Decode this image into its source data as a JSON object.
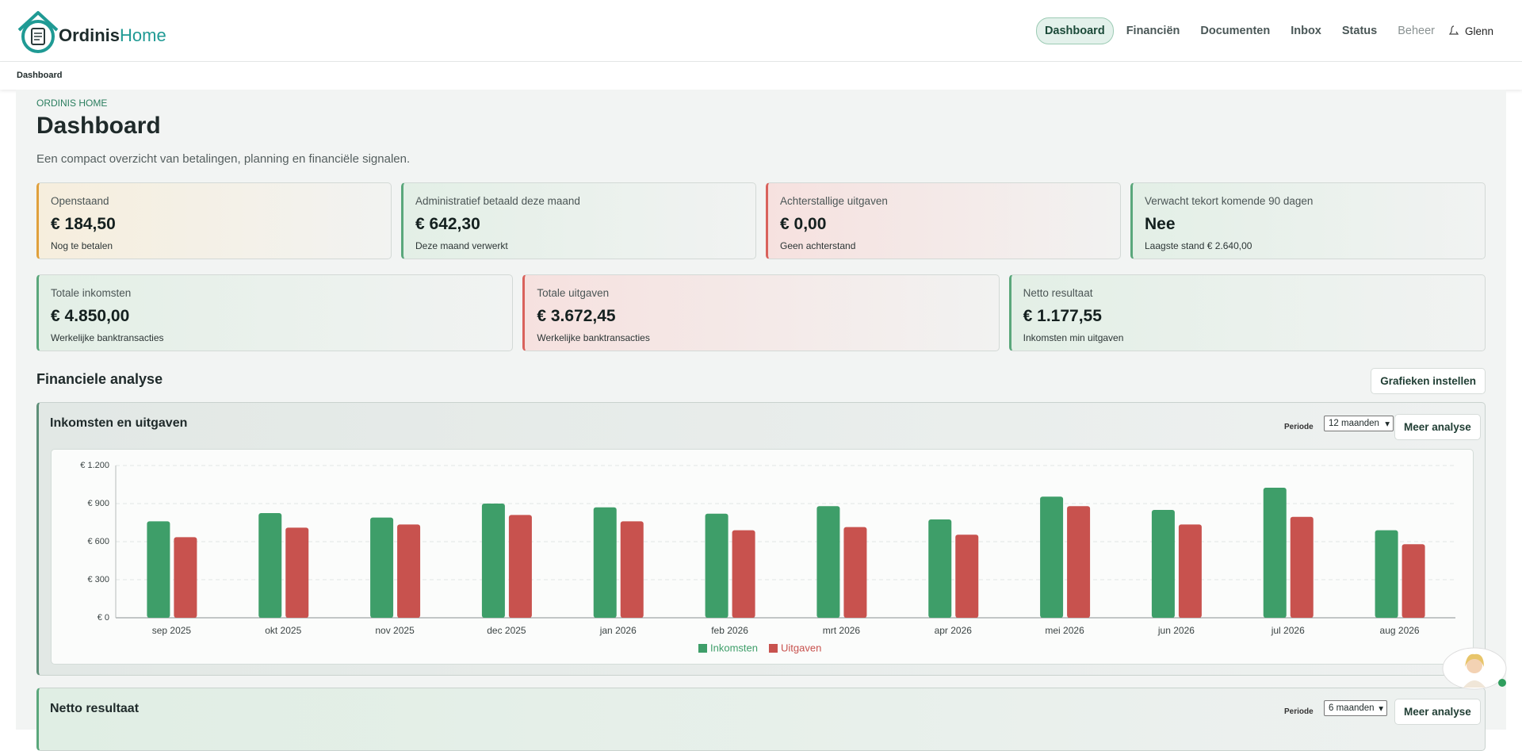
{
  "brand": {
    "name": "Ordinis",
    "accent": "Home"
  },
  "nav": [
    "Dashboard",
    "Financiën",
    "Documenten",
    "Inbox",
    "Status",
    "Beheer"
  ],
  "user": "Glenn",
  "breadcrumb": "Dashboard",
  "page": {
    "eyebrow": "ORDINIS HOME",
    "title": "Dashboard",
    "subtitle": "Een compact overzicht van betalingen, planning en financiële signalen."
  },
  "kpis": [
    {
      "label": "Openstaand",
      "value": "€ 184,50",
      "note": "Nog te betalen"
    },
    {
      "label": "Administratief betaald deze maand",
      "value": "€ 642,30",
      "note": "Deze maand verwerkt"
    },
    {
      "label": "Achterstallige uitgaven",
      "value": "€ 0,00",
      "note": "Geen achterstand"
    },
    {
      "label": "Verwacht tekort komende 90 dagen",
      "value": "Nee",
      "note": "Laagste stand € 2.640,00"
    }
  ],
  "totals": [
    {
      "label": "Totale inkomsten",
      "value": "€ 4.850,00",
      "note": "Werkelijke banktransacties"
    },
    {
      "label": "Totale uitgaven",
      "value": "€ 3.672,45",
      "note": "Werkelijke banktransacties"
    },
    {
      "label": "Netto resultaat",
      "value": "€ 1.177,55",
      "note": "Inkomsten min uitgaven"
    }
  ],
  "section": {
    "title": "Financiele analyse",
    "button": "Grafieken instellen"
  },
  "chart_card": {
    "title": "Inkomsten en uitgaven",
    "period_label": "Periode",
    "period": "12 maanden",
    "button": "Meer analyse"
  },
  "chart_data": {
    "type": "bar",
    "categories": [
      "sep 2025",
      "okt 2025",
      "nov 2025",
      "dec 2025",
      "jan 2026",
      "feb 2026",
      "mrt 2026",
      "apr 2026",
      "mei 2026",
      "jun 2026",
      "jul 2026",
      "aug 2026"
    ],
    "series": [
      {
        "name": "Inkomsten",
        "color": "#3e9e69",
        "values": [
          760,
          825,
          790,
          900,
          870,
          820,
          880,
          775,
          955,
          850,
          1025,
          690
        ]
      },
      {
        "name": "Uitgaven",
        "color": "#c8524e",
        "values": [
          635,
          710,
          735,
          810,
          760,
          690,
          715,
          655,
          880,
          735,
          795,
          580
        ]
      }
    ],
    "ylim": [
      0,
      1200
    ],
    "yticks": [
      {
        "value": 0,
        "label": "€ 0"
      },
      {
        "value": 300,
        "label": "€ 300"
      },
      {
        "value": 600,
        "label": "€ 600"
      },
      {
        "value": 900,
        "label": "€ 900"
      },
      {
        "value": 1200,
        "label": "€ 1.200"
      }
    ],
    "grid": true,
    "legend": "bottom"
  },
  "netto_card": {
    "title": "Netto resultaat",
    "period_label": "Periode",
    "period": "6 maanden",
    "button": "Meer analyse"
  }
}
